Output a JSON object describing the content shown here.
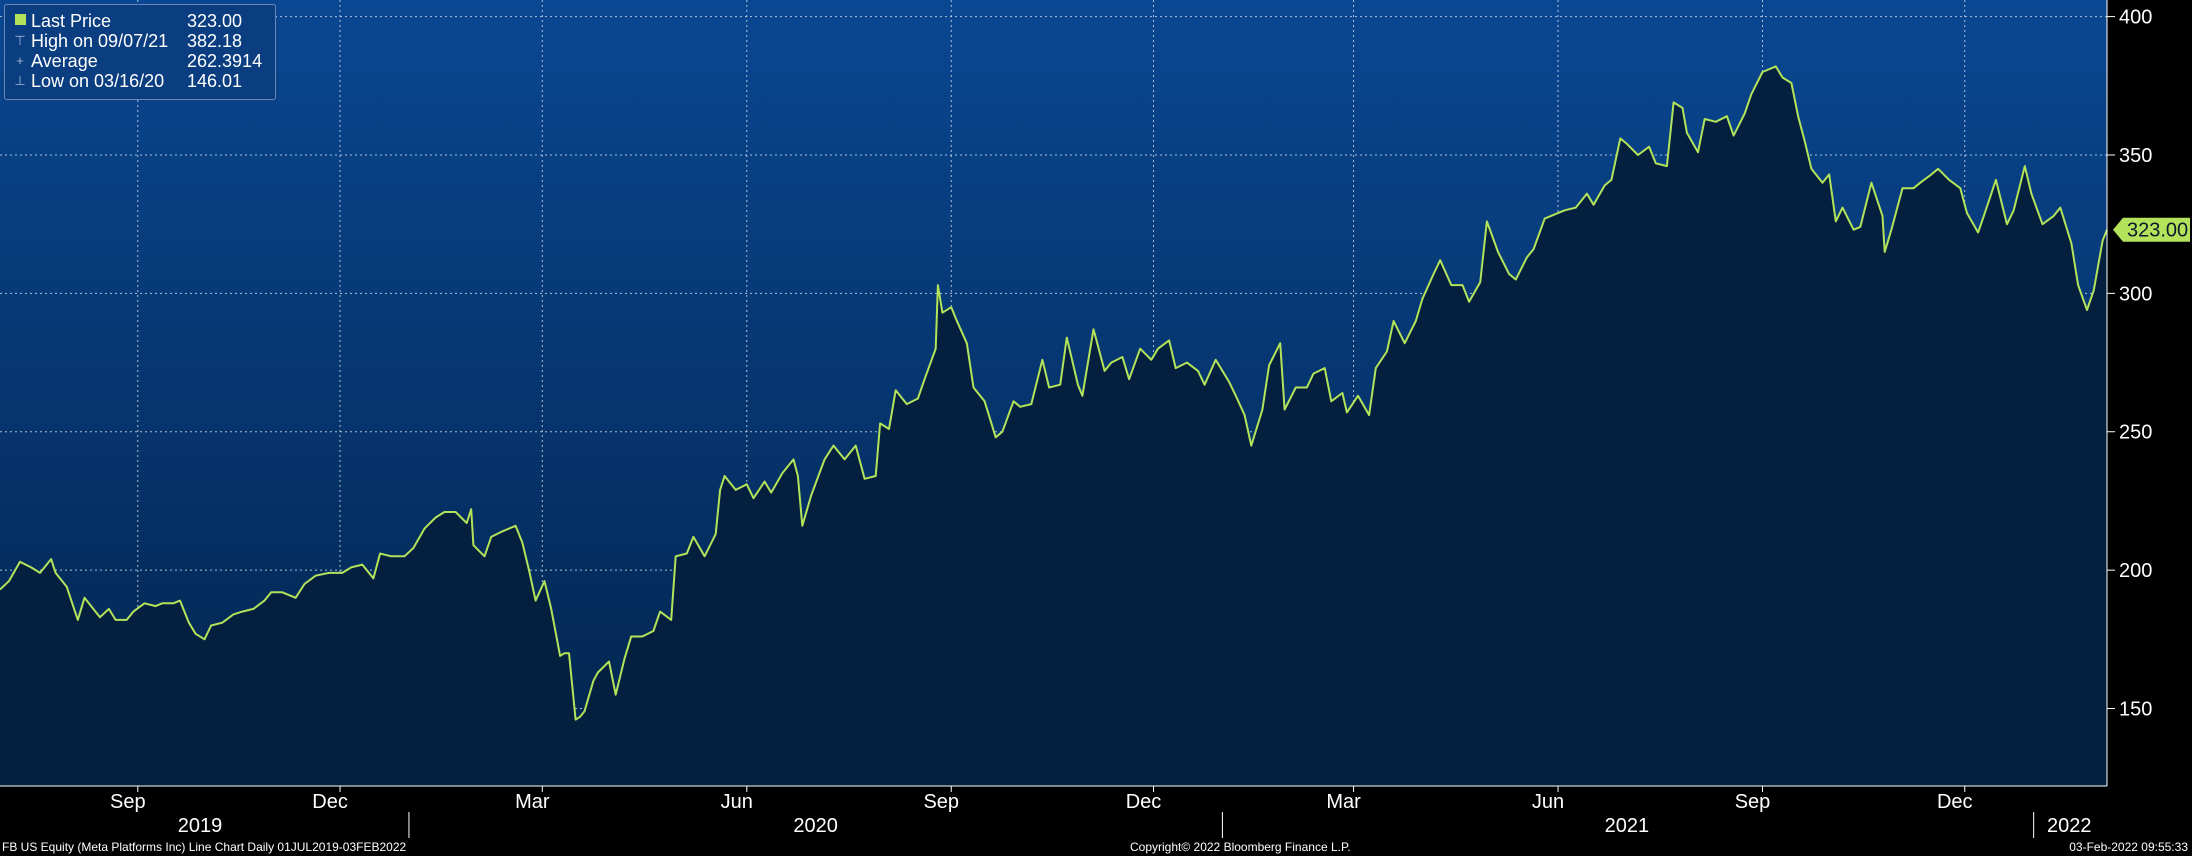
{
  "colors": {
    "plot_top": "#0a4792",
    "plot_bottom": "#02244c",
    "fill": "#051f3e",
    "line": "#b2e35a",
    "grid": "#d9e2ef",
    "badge": "#b2e35a",
    "badge_text": "#0d1a2e"
  },
  "legend": {
    "items": [
      {
        "icon": "last-price-swatch",
        "label": "Last Price",
        "value": "323.00"
      },
      {
        "icon": "high-marker-icon",
        "label": "High on 09/07/21",
        "value": "382.18"
      },
      {
        "icon": "average-marker-icon",
        "label": "Average",
        "value": "262.3914"
      },
      {
        "icon": "low-marker-icon",
        "label": "Low on 03/16/20",
        "value": "146.01"
      }
    ]
  },
  "footer": {
    "left": "FB US Equity (Meta Platforms Inc) Line Chart  Daily 01JUL2019-03FEB2022",
    "center": "Copyright© 2022 Bloomberg Finance L.P.",
    "right": "03-Feb-2022 09:55:33"
  },
  "chart_data": {
    "type": "area",
    "title": "",
    "xlabel": "",
    "ylabel": "",
    "ylim": [
      122,
      406
    ],
    "xlim": [
      "2019-07-01",
      "2022-02-03"
    ],
    "y_ticks": [
      150,
      200,
      250,
      300,
      350,
      400
    ],
    "month_ticks": [
      {
        "date": "2019-09-01",
        "label": "Sep"
      },
      {
        "date": "2019-12-01",
        "label": "Dec"
      },
      {
        "date": "2020-03-01",
        "label": "Mar"
      },
      {
        "date": "2020-06-01",
        "label": "Jun"
      },
      {
        "date": "2020-09-01",
        "label": "Sep"
      },
      {
        "date": "2020-12-01",
        "label": "Dec"
      },
      {
        "date": "2021-03-01",
        "label": "Mar"
      },
      {
        "date": "2021-06-01",
        "label": "Jun"
      },
      {
        "date": "2021-09-01",
        "label": "Sep"
      },
      {
        "date": "2021-12-01",
        "label": "Dec"
      }
    ],
    "year_labels": [
      {
        "label": "2019",
        "date": "2019-09-29"
      },
      {
        "label": "2020",
        "date": "2020-07-02"
      },
      {
        "label": "2021",
        "date": "2021-07-02"
      },
      {
        "label": "2022",
        "date": "2022-01-17"
      }
    ],
    "year_boundaries": [
      "2020-01-01",
      "2021-01-01",
      "2022-01-01"
    ],
    "last_price_label": "323.00",
    "grid": true,
    "series": [
      {
        "name": "Last Price",
        "points": [
          [
            "2019-07-01",
            193
          ],
          [
            "2019-07-05",
            196
          ],
          [
            "2019-07-10",
            203
          ],
          [
            "2019-07-15",
            201
          ],
          [
            "2019-07-19",
            199
          ],
          [
            "2019-07-24",
            204
          ],
          [
            "2019-07-26",
            199
          ],
          [
            "2019-07-31",
            194
          ],
          [
            "2019-08-05",
            182
          ],
          [
            "2019-08-08",
            190
          ],
          [
            "2019-08-12",
            186
          ],
          [
            "2019-08-15",
            183
          ],
          [
            "2019-08-19",
            186
          ],
          [
            "2019-08-22",
            182
          ],
          [
            "2019-08-27",
            182
          ],
          [
            "2019-08-30",
            185
          ],
          [
            "2019-09-04",
            188
          ],
          [
            "2019-09-09",
            187
          ],
          [
            "2019-09-12",
            188
          ],
          [
            "2019-09-17",
            188
          ],
          [
            "2019-09-20",
            189
          ],
          [
            "2019-09-24",
            181
          ],
          [
            "2019-09-27",
            177
          ],
          [
            "2019-10-01",
            175
          ],
          [
            "2019-10-04",
            180
          ],
          [
            "2019-10-09",
            181
          ],
          [
            "2019-10-14",
            184
          ],
          [
            "2019-10-18",
            185
          ],
          [
            "2019-10-23",
            186
          ],
          [
            "2019-10-28",
            189
          ],
          [
            "2019-10-31",
            192
          ],
          [
            "2019-11-05",
            192
          ],
          [
            "2019-11-11",
            190
          ],
          [
            "2019-11-15",
            195
          ],
          [
            "2019-11-20",
            198
          ],
          [
            "2019-11-26",
            199
          ],
          [
            "2019-12-02",
            199
          ],
          [
            "2019-12-06",
            201
          ],
          [
            "2019-12-11",
            202
          ],
          [
            "2019-12-16",
            197
          ],
          [
            "2019-12-19",
            206
          ],
          [
            "2019-12-24",
            205
          ],
          [
            "2019-12-30",
            205
          ],
          [
            "2020-01-03",
            208
          ],
          [
            "2020-01-08",
            215
          ],
          [
            "2020-01-13",
            219
          ],
          [
            "2020-01-17",
            221
          ],
          [
            "2020-01-22",
            221
          ],
          [
            "2020-01-27",
            217
          ],
          [
            "2020-01-29",
            222
          ],
          [
            "2020-01-30",
            209
          ],
          [
            "2020-02-04",
            205
          ],
          [
            "2020-02-07",
            212
          ],
          [
            "2020-02-12",
            214
          ],
          [
            "2020-02-18",
            216
          ],
          [
            "2020-02-21",
            210
          ],
          [
            "2020-02-24",
            200
          ],
          [
            "2020-02-27",
            189
          ],
          [
            "2020-03-02",
            196
          ],
          [
            "2020-03-05",
            186
          ],
          [
            "2020-03-09",
            169
          ],
          [
            "2020-03-11",
            170
          ],
          [
            "2020-03-13",
            170
          ],
          [
            "2020-03-16",
            146
          ],
          [
            "2020-03-18",
            147
          ],
          [
            "2020-03-20",
            149
          ],
          [
            "2020-03-24",
            160
          ],
          [
            "2020-03-26",
            163
          ],
          [
            "2020-03-31",
            167
          ],
          [
            "2020-04-03",
            155
          ],
          [
            "2020-04-07",
            168
          ],
          [
            "2020-04-10",
            176
          ],
          [
            "2020-04-15",
            176
          ],
          [
            "2020-04-20",
            178
          ],
          [
            "2020-04-23",
            185
          ],
          [
            "2020-04-28",
            182
          ],
          [
            "2020-04-30",
            205
          ],
          [
            "2020-05-05",
            206
          ],
          [
            "2020-05-08",
            212
          ],
          [
            "2020-05-13",
            205
          ],
          [
            "2020-05-18",
            213
          ],
          [
            "2020-05-20",
            229
          ],
          [
            "2020-05-22",
            234
          ],
          [
            "2020-05-27",
            229
          ],
          [
            "2020-06-01",
            231
          ],
          [
            "2020-06-04",
            226
          ],
          [
            "2020-06-09",
            232
          ],
          [
            "2020-06-12",
            228
          ],
          [
            "2020-06-17",
            235
          ],
          [
            "2020-06-22",
            240
          ],
          [
            "2020-06-24",
            234
          ],
          [
            "2020-06-26",
            216
          ],
          [
            "2020-06-30",
            227
          ],
          [
            "2020-07-06",
            240
          ],
          [
            "2020-07-10",
            245
          ],
          [
            "2020-07-15",
            240
          ],
          [
            "2020-07-20",
            245
          ],
          [
            "2020-07-24",
            233
          ],
          [
            "2020-07-29",
            234
          ],
          [
            "2020-07-31",
            253
          ],
          [
            "2020-08-04",
            251
          ],
          [
            "2020-08-07",
            265
          ],
          [
            "2020-08-12",
            260
          ],
          [
            "2020-08-17",
            262
          ],
          [
            "2020-08-20",
            269
          ],
          [
            "2020-08-25",
            280
          ],
          [
            "2020-08-26",
            303
          ],
          [
            "2020-08-28",
            293
          ],
          [
            "2020-09-01",
            295
          ],
          [
            "2020-09-03",
            291
          ],
          [
            "2020-09-08",
            282
          ],
          [
            "2020-09-11",
            266
          ],
          [
            "2020-09-16",
            261
          ],
          [
            "2020-09-21",
            248
          ],
          [
            "2020-09-24",
            250
          ],
          [
            "2020-09-29",
            261
          ],
          [
            "2020-10-02",
            259
          ],
          [
            "2020-10-07",
            260
          ],
          [
            "2020-10-12",
            276
          ],
          [
            "2020-10-15",
            266
          ],
          [
            "2020-10-20",
            267
          ],
          [
            "2020-10-23",
            284
          ],
          [
            "2020-10-28",
            267
          ],
          [
            "2020-10-30",
            263
          ],
          [
            "2020-11-04",
            287
          ],
          [
            "2020-11-09",
            272
          ],
          [
            "2020-11-12",
            275
          ],
          [
            "2020-11-17",
            277
          ],
          [
            "2020-11-20",
            269
          ],
          [
            "2020-11-25",
            280
          ],
          [
            "2020-11-30",
            276
          ],
          [
            "2020-12-03",
            280
          ],
          [
            "2020-12-08",
            283
          ],
          [
            "2020-12-11",
            273
          ],
          [
            "2020-12-16",
            275
          ],
          [
            "2020-12-21",
            272
          ],
          [
            "2020-12-24",
            267
          ],
          [
            "2020-12-29",
            276
          ],
          [
            "2021-01-04",
            268
          ],
          [
            "2021-01-07",
            263
          ],
          [
            "2021-01-11",
            256
          ],
          [
            "2021-01-14",
            245
          ],
          [
            "2021-01-19",
            258
          ],
          [
            "2021-01-22",
            274
          ],
          [
            "2021-01-27",
            282
          ],
          [
            "2021-01-29",
            258
          ],
          [
            "2021-02-03",
            266
          ],
          [
            "2021-02-08",
            266
          ],
          [
            "2021-02-11",
            271
          ],
          [
            "2021-02-16",
            273
          ],
          [
            "2021-02-19",
            261
          ],
          [
            "2021-02-24",
            264
          ],
          [
            "2021-02-26",
            257
          ],
          [
            "2021-03-03",
            263
          ],
          [
            "2021-03-08",
            256
          ],
          [
            "2021-03-11",
            273
          ],
          [
            "2021-03-16",
            279
          ],
          [
            "2021-03-19",
            290
          ],
          [
            "2021-03-24",
            282
          ],
          [
            "2021-03-29",
            290
          ],
          [
            "2021-04-01",
            298
          ],
          [
            "2021-04-06",
            307
          ],
          [
            "2021-04-09",
            312
          ],
          [
            "2021-04-14",
            303
          ],
          [
            "2021-04-19",
            303
          ],
          [
            "2021-04-22",
            297
          ],
          [
            "2021-04-27",
            304
          ],
          [
            "2021-04-30",
            326
          ],
          [
            "2021-05-05",
            315
          ],
          [
            "2021-05-10",
            307
          ],
          [
            "2021-05-13",
            305
          ],
          [
            "2021-05-18",
            313
          ],
          [
            "2021-05-21",
            316
          ],
          [
            "2021-05-26",
            327
          ],
          [
            "2021-06-01",
            329
          ],
          [
            "2021-06-04",
            330
          ],
          [
            "2021-06-09",
            331
          ],
          [
            "2021-06-14",
            336
          ],
          [
            "2021-06-17",
            332
          ],
          [
            "2021-06-22",
            339
          ],
          [
            "2021-06-25",
            341
          ],
          [
            "2021-06-29",
            356
          ],
          [
            "2021-07-02",
            354
          ],
          [
            "2021-07-07",
            350
          ],
          [
            "2021-07-12",
            353
          ],
          [
            "2021-07-15",
            347
          ],
          [
            "2021-07-20",
            346
          ],
          [
            "2021-07-23",
            369
          ],
          [
            "2021-07-27",
            367
          ],
          [
            "2021-07-29",
            358
          ],
          [
            "2021-08-03",
            351
          ],
          [
            "2021-08-06",
            363
          ],
          [
            "2021-08-11",
            362
          ],
          [
            "2021-08-16",
            364
          ],
          [
            "2021-08-19",
            357
          ],
          [
            "2021-08-24",
            365
          ],
          [
            "2021-08-27",
            372
          ],
          [
            "2021-09-01",
            380
          ],
          [
            "2021-09-07",
            382
          ],
          [
            "2021-09-10",
            378
          ],
          [
            "2021-09-14",
            376
          ],
          [
            "2021-09-17",
            364
          ],
          [
            "2021-09-20",
            355
          ],
          [
            "2021-09-23",
            345
          ],
          [
            "2021-09-28",
            340
          ],
          [
            "2021-10-01",
            343
          ],
          [
            "2021-10-04",
            326
          ],
          [
            "2021-10-07",
            331
          ],
          [
            "2021-10-12",
            323
          ],
          [
            "2021-10-15",
            324
          ],
          [
            "2021-10-20",
            340
          ],
          [
            "2021-10-25",
            328
          ],
          [
            "2021-10-26",
            315
          ],
          [
            "2021-10-29",
            323
          ],
          [
            "2021-11-03",
            338
          ],
          [
            "2021-11-08",
            338
          ],
          [
            "2021-11-11",
            340
          ],
          [
            "2021-11-16",
            343
          ],
          [
            "2021-11-19",
            345
          ],
          [
            "2021-11-24",
            341
          ],
          [
            "2021-11-29",
            338
          ],
          [
            "2021-12-02",
            329
          ],
          [
            "2021-12-07",
            322
          ],
          [
            "2021-12-10",
            329
          ],
          [
            "2021-12-15",
            341
          ],
          [
            "2021-12-20",
            325
          ],
          [
            "2021-12-23",
            330
          ],
          [
            "2021-12-28",
            346
          ],
          [
            "2021-12-31",
            336
          ],
          [
            "2022-01-05",
            325
          ],
          [
            "2022-01-10",
            328
          ],
          [
            "2022-01-13",
            331
          ],
          [
            "2022-01-18",
            318
          ],
          [
            "2022-01-21",
            303
          ],
          [
            "2022-01-25",
            294
          ],
          [
            "2022-01-28",
            301
          ],
          [
            "2022-02-01",
            319
          ],
          [
            "2022-02-03",
            323
          ]
        ]
      }
    ]
  }
}
